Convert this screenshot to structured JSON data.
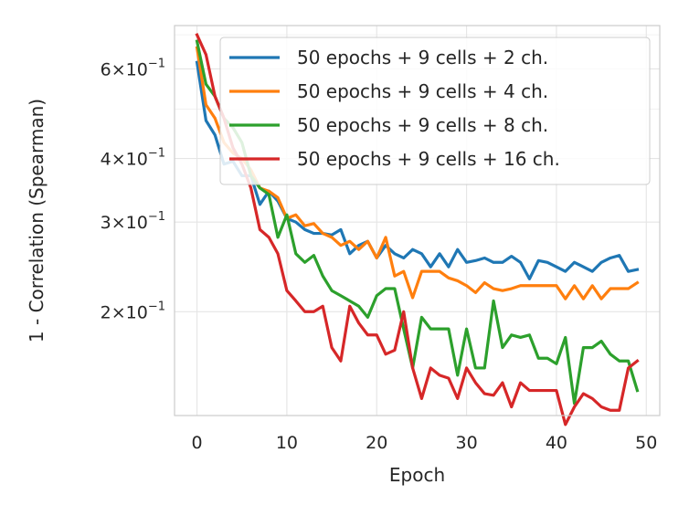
{
  "chart_data": {
    "type": "line",
    "xlabel": "Epoch",
    "ylabel": "1 - Correlation (Spearman)",
    "yscale": "log",
    "grid": true,
    "legend_position": "top-right",
    "xlim": [
      -2.5,
      51.5
    ],
    "ylim": [
      0.125,
      0.73
    ],
    "xticks": [
      0,
      10,
      20,
      30,
      40,
      50
    ],
    "xtick_labels": [
      "0",
      "10",
      "20",
      "30",
      "40",
      "50"
    ],
    "yticks": [
      0.2,
      0.3,
      0.4,
      0.6
    ],
    "ytick_labels": [
      {
        "mantissa": "2",
        "base": "10",
        "exp": "−1"
      },
      {
        "mantissa": "3",
        "base": "10",
        "exp": "−1"
      },
      {
        "mantissa": "4",
        "base": "10",
        "exp": "−1"
      },
      {
        "mantissa": "6",
        "base": "10",
        "exp": "−1"
      }
    ],
    "series": [
      {
        "name": "50 epochs + 9 cells + 2 ch.",
        "color": "#1f77b4",
        "values": [
          0.618,
          0.475,
          0.445,
          0.39,
          0.395,
          0.37,
          0.37,
          0.325,
          0.345,
          0.33,
          0.305,
          0.3,
          0.29,
          0.285,
          0.285,
          0.283,
          0.29,
          0.26,
          0.27,
          0.275,
          0.255,
          0.27,
          0.26,
          0.255,
          0.265,
          0.26,
          0.245,
          0.26,
          0.245,
          0.265,
          0.25,
          0.252,
          0.255,
          0.25,
          0.25,
          0.257,
          0.25,
          0.232,
          0.252,
          0.25,
          0.245,
          0.24,
          0.25,
          0.245,
          0.24,
          0.25,
          0.255,
          0.258,
          0.24,
          0.242
        ]
      },
      {
        "name": "50 epochs + 9 cells + 4 ch.",
        "color": "#ff7f0e",
        "values": [
          0.66,
          0.51,
          0.48,
          0.43,
          0.41,
          0.4,
          0.38,
          0.35,
          0.345,
          0.335,
          0.305,
          0.31,
          0.295,
          0.298,
          0.285,
          0.28,
          0.27,
          0.275,
          0.265,
          0.275,
          0.255,
          0.28,
          0.235,
          0.24,
          0.213,
          0.24,
          0.24,
          0.24,
          0.233,
          0.23,
          0.225,
          0.218,
          0.228,
          0.222,
          0.22,
          0.222,
          0.225,
          0.225,
          0.225,
          0.225,
          0.225,
          0.212,
          0.225,
          0.212,
          0.225,
          0.212,
          0.222,
          0.222,
          0.222,
          0.228
        ]
      },
      {
        "name": "50 epochs + 9 cells + 8 ch.",
        "color": "#2ca02c",
        "values": [
          0.68,
          0.56,
          0.53,
          0.48,
          0.46,
          0.43,
          0.37,
          0.35,
          0.34,
          0.28,
          0.31,
          0.26,
          0.25,
          0.258,
          0.235,
          0.22,
          0.215,
          0.21,
          0.205,
          0.195,
          0.215,
          0.222,
          0.222,
          0.185,
          0.155,
          0.195,
          0.185,
          0.185,
          0.185,
          0.15,
          0.185,
          0.155,
          0.155,
          0.21,
          0.17,
          0.18,
          0.178,
          0.18,
          0.162,
          0.162,
          0.158,
          0.178,
          0.132,
          0.17,
          0.17,
          0.175,
          0.165,
          0.16,
          0.16,
          0.14
        ]
      },
      {
        "name": "50 epochs + 9 cells + 16 ch.",
        "color": "#d62728",
        "values": [
          0.7,
          0.64,
          0.53,
          0.48,
          0.42,
          0.39,
          0.35,
          0.29,
          0.28,
          0.26,
          0.22,
          0.21,
          0.2,
          0.2,
          0.205,
          0.17,
          0.16,
          0.205,
          0.19,
          0.18,
          0.18,
          0.165,
          0.168,
          0.2,
          0.155,
          0.135,
          0.155,
          0.15,
          0.148,
          0.135,
          0.155,
          0.145,
          0.138,
          0.137,
          0.145,
          0.13,
          0.145,
          0.14,
          0.14,
          0.14,
          0.14,
          0.12,
          0.13,
          0.138,
          0.135,
          0.13,
          0.128,
          0.128,
          0.155,
          0.16
        ]
      }
    ]
  }
}
